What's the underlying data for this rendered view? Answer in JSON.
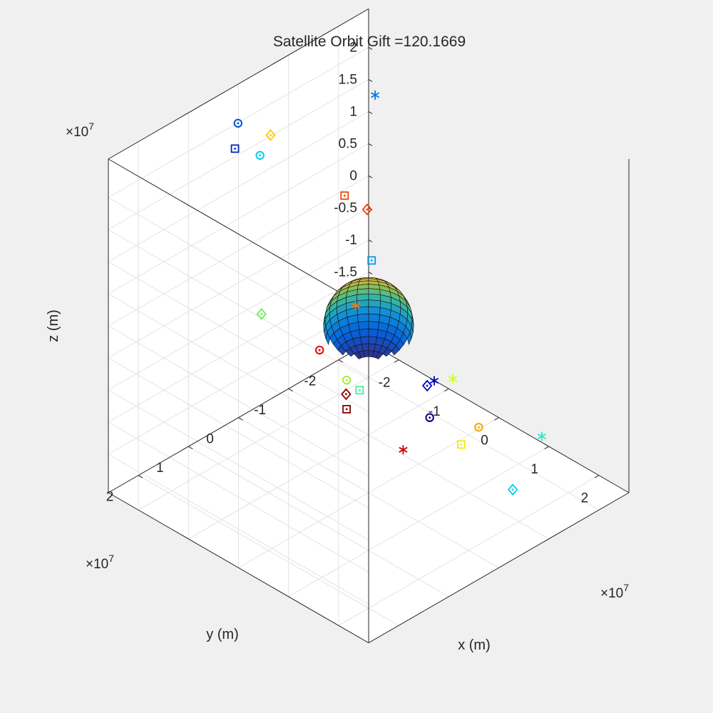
{
  "chart_data": {
    "type": "scatter3d",
    "title": "Satellite Orbit Gift =120.1669",
    "xlabel": "x (m)",
    "ylabel": "y (m)",
    "zlabel": "z (m)",
    "exponent_base": "×10",
    "exponent_power": "7",
    "xlim": [
      -2.6,
      2.6
    ],
    "ylim": [
      -2.6,
      2.6
    ],
    "zlim": [
      -2.6,
      2.6
    ],
    "unit_scale": 10000000,
    "grid": true,
    "legend": "none",
    "x_ticks": [
      -2,
      -1,
      0,
      1,
      2
    ],
    "y_ticks": [
      -2,
      -1,
      0,
      1,
      2
    ],
    "z_ticks": [
      -2,
      -1.5,
      -1,
      -0.5,
      0,
      0.5,
      1,
      1.5,
      2
    ],
    "x_tick_labels": [
      "-2",
      "-1",
      "0",
      "1",
      "2"
    ],
    "y_tick_labels": [
      "-2",
      "-1",
      "0",
      "1",
      "2"
    ],
    "z_tick_labels": [
      "-2",
      "-1.5",
      "-1",
      "-0.5",
      "0",
      "0.5",
      "1",
      "1.5",
      "2"
    ],
    "earth": {
      "radius": 0.637,
      "colormap": "parula"
    },
    "points": [
      {
        "x": -2.28,
        "y": 0.33,
        "z": 2.28,
        "marker": "circle",
        "color": "#0055dd"
      },
      {
        "x": 1.88,
        "y": 2.33,
        "z": 0.83,
        "marker": "diamond",
        "color": "#880000"
      },
      {
        "x": 1.89,
        "y": 2.33,
        "z": 0.6,
        "marker": "square",
        "color": "#880000"
      },
      {
        "x": -0.03,
        "y": 2.11,
        "z": 1.12,
        "marker": "diamond",
        "color": "#66ee55"
      },
      {
        "x": -2.36,
        "y": -0.4,
        "z": 1.73,
        "marker": "diamond",
        "color": "#ffcc00"
      },
      {
        "x": -2.27,
        "y": -0.1,
        "z": 1.59,
        "marker": "circle",
        "color": "#00ccee"
      },
      {
        "x": -2.37,
        "y": 0.3,
        "z": 1.83,
        "marker": "square",
        "color": "#0022bb"
      },
      {
        "x": -0.93,
        "y": -0.9,
        "z": 0.99,
        "marker": "diamond",
        "color": "#ff3300"
      },
      {
        "x": 2.35,
        "y": 1.04,
        "z": 0.67,
        "marker": "star",
        "color": "#0000aa"
      },
      {
        "x": 0.88,
        "y": 1.06,
        "z": -0.13,
        "marker": "square",
        "color": "#44ee99"
      },
      {
        "x": 0.12,
        "y": 0.56,
        "z": -0.54,
        "marker": "circle",
        "color": "#aaee33"
      },
      {
        "x": 2.49,
        "y": 0.29,
        "z": -0.33,
        "marker": "circle",
        "color": "#eeaa00"
      },
      {
        "x": -2.13,
        "y": -2.26,
        "z": 1.62,
        "marker": "star",
        "color": "#0077ee"
      },
      {
        "x": 1.61,
        "y": 0.39,
        "z": -0.53,
        "marker": "circle",
        "color": "#000088"
      },
      {
        "x": -2.25,
        "y": -1.77,
        "z": 0.22,
        "marker": "square",
        "color": "#ee4400"
      },
      {
        "x": 0.99,
        "y": -0.69,
        "z": -0.69,
        "marker": "star",
        "color": "#ccff22"
      },
      {
        "x": -1.27,
        "y": -0.29,
        "z": -1.08,
        "marker": "circle",
        "color": "#ee0000"
      },
      {
        "x": -1.89,
        "y": -1.63,
        "z": -1.27,
        "marker": "star",
        "color": "#ff7700"
      },
      {
        "x": -2.08,
        "y": -2.14,
        "z": -0.88,
        "marker": "square",
        "color": "#0099ee"
      },
      {
        "x": 0.98,
        "y": -0.87,
        "z": -1.8,
        "marker": "square",
        "color": "#eeee00"
      },
      {
        "x": -0.12,
        "y": -0.81,
        "z": -2.35,
        "marker": "star",
        "color": "#cc0000"
      },
      {
        "x": 2.02,
        "y": -0.86,
        "z": -2.03,
        "marker": "diamond",
        "color": "#00ccee"
      },
      {
        "x": -0.99,
        "y": -2.16,
        "z": -2.35,
        "marker": "diamond",
        "color": "#0000cc"
      },
      {
        "x": 1.1,
        "y": -2.36,
        "z": -2.29,
        "marker": "star",
        "color": "#22eecc"
      }
    ]
  }
}
